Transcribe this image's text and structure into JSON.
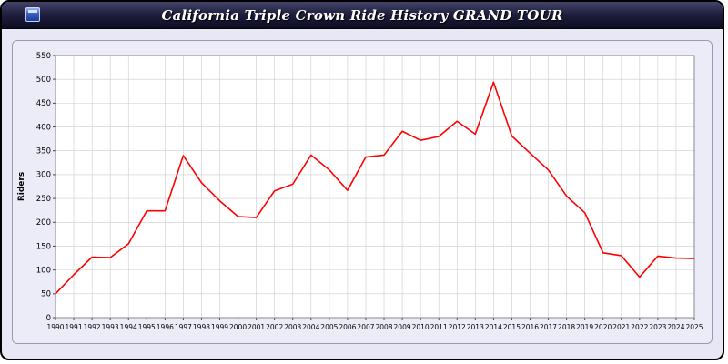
{
  "title": "California Triple Crown Ride History GRAND TOUR",
  "colors": {
    "page_bg": "#e7e7f5",
    "titlebar_bg": "#15152e",
    "title_text": "#ffffff",
    "panel_border": "#9a9ab8",
    "plot_bg": "#ffffff",
    "plot_border": "#888888",
    "grid": "#cccccc",
    "line": "#ff0000"
  },
  "chart_data": {
    "type": "line",
    "title": "California Triple Crown Ride History GRAND TOUR",
    "xlabel": "",
    "ylabel": "Riders",
    "ylim": [
      0,
      550
    ],
    "ytick_step": 50,
    "grid": true,
    "legend": "none",
    "series_name": "Riders",
    "series_color": "#ff0000",
    "x": [
      1990,
      1991,
      1992,
      1993,
      1994,
      1995,
      1996,
      1997,
      1998,
      1999,
      2000,
      2001,
      2002,
      2003,
      2004,
      2005,
      2006,
      2007,
      2008,
      2009,
      2010,
      2011,
      2012,
      2013,
      2014,
      2015,
      2016,
      2017,
      2018,
      2019,
      2020,
      2021,
      2022,
      2023,
      2024,
      2025
    ],
    "values": [
      50,
      90,
      127,
      126,
      155,
      224,
      224,
      340,
      283,
      245,
      212,
      210,
      266,
      280,
      341,
      310,
      267,
      337,
      341,
      391,
      372,
      380,
      412,
      385,
      494,
      381,
      345,
      310,
      255,
      220,
      136,
      130,
      85,
      129,
      125,
      124
    ]
  }
}
